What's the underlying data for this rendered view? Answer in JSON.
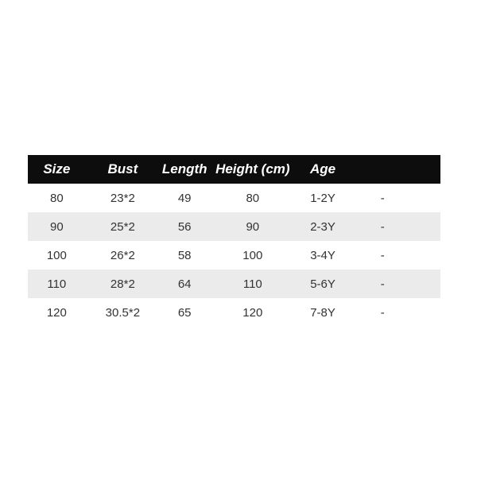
{
  "size_chart": {
    "columns": [
      "Size",
      "Bust",
      "Length",
      "Height (cm)",
      "Age",
      ""
    ],
    "rows": [
      [
        "80",
        "23*2",
        "49",
        "80",
        "1-2Y",
        "-"
      ],
      [
        "90",
        "25*2",
        "56",
        "90",
        "2-3Y",
        "-"
      ],
      [
        "100",
        "26*2",
        "58",
        "100",
        "3-4Y",
        "-"
      ],
      [
        "110",
        "28*2",
        "64",
        "110",
        "5-6Y",
        "-"
      ],
      [
        "120",
        "30.5*2",
        "65",
        "120",
        "7-8Y",
        "-"
      ]
    ],
    "colors": {
      "header_bg": "#0d0d0d",
      "header_text": "#ffffff",
      "row_bg": "#ffffff",
      "row_alt_bg": "#ebebeb",
      "cell_text": "#333333",
      "page_bg": "#ffffff"
    }
  },
  "chart_data": {
    "type": "table",
    "title": "",
    "columns": [
      "Size",
      "Bust",
      "Length",
      "Height (cm)",
      "Age",
      ""
    ],
    "rows": [
      [
        "80",
        "23*2",
        "49",
        "80",
        "1-2Y",
        "-"
      ],
      [
        "90",
        "25*2",
        "56",
        "90",
        "2-3Y",
        "-"
      ],
      [
        "100",
        "26*2",
        "58",
        "100",
        "3-4Y",
        "-"
      ],
      [
        "110",
        "28*2",
        "64",
        "110",
        "5-6Y",
        "-"
      ],
      [
        "120",
        "30.5*2",
        "65",
        "120",
        "7-8Y",
        "-"
      ]
    ],
    "layout": {
      "header_style": "black bar, white bold italic text",
      "zebra_striping": "rows 2 and 4 light gray",
      "grid": "off"
    }
  }
}
